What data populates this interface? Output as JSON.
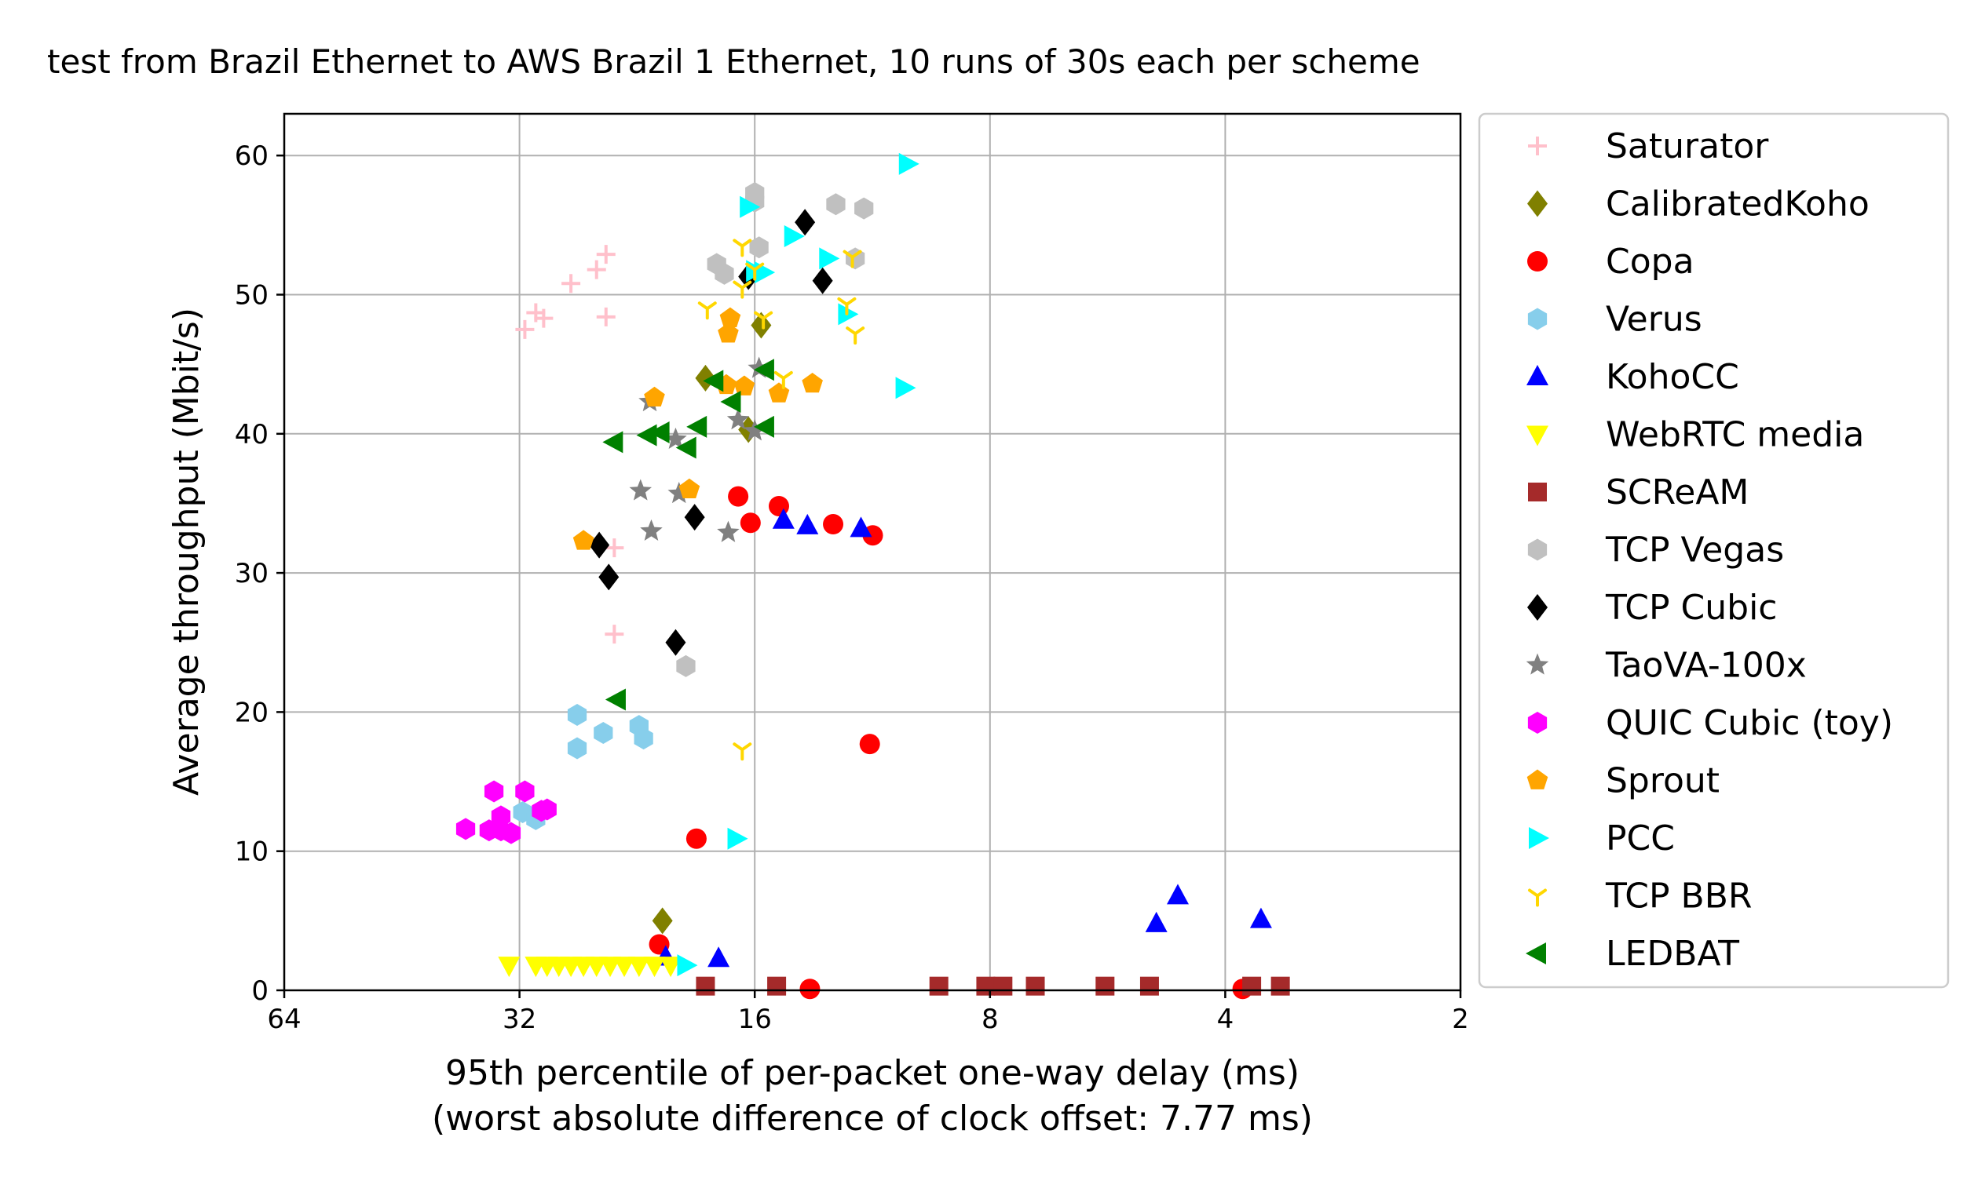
{
  "chart_data": {
    "type": "scatter",
    "title": "test from Brazil Ethernet to AWS Brazil 1 Ethernet, 10 runs of 30s each per scheme",
    "xlabel": "95th percentile of per-packet one-way delay (ms)",
    "xlabel2": "(worst absolute difference of clock offset: 7.77 ms)",
    "ylabel": "Average throughput (Mbit/s)",
    "x_scale": "log2",
    "x_inverted": true,
    "xlim": [
      64,
      2
    ],
    "ylim": [
      0,
      63
    ],
    "xticks": [
      64,
      32,
      16,
      8,
      4,
      2
    ],
    "xtick_labels": [
      "64",
      "32",
      "16",
      "8",
      "4",
      "2"
    ],
    "yticks": [
      0,
      10,
      20,
      30,
      40,
      50,
      60
    ],
    "ytick_labels": [
      "0",
      "10",
      "20",
      "30",
      "40",
      "50",
      "60"
    ],
    "grid": true,
    "legend_position": "outside-right",
    "series": [
      {
        "name": "Saturator",
        "marker": "plus",
        "color": "#ffc0cb",
        "points": [
          [
            31.5,
            47.5
          ],
          [
            30.5,
            48.7
          ],
          [
            29.8,
            48.3
          ],
          [
            27.5,
            50.8
          ],
          [
            25.5,
            51.8
          ],
          [
            24.8,
            52.9
          ],
          [
            24.8,
            48.4
          ],
          [
            24.2,
            31.8
          ],
          [
            24.2,
            25.6
          ]
        ]
      },
      {
        "name": "CalibratedKoho",
        "marker": "diamond",
        "color": "#808000",
        "points": [
          [
            18.5,
            44.0
          ],
          [
            16.3,
            40.3
          ],
          [
            15.7,
            47.8
          ],
          [
            21.0,
            5.0
          ]
        ]
      },
      {
        "name": "Copa",
        "marker": "circle",
        "color": "#ff0000",
        "points": [
          [
            16.8,
            35.5
          ],
          [
            16.2,
            33.6
          ],
          [
            14.9,
            34.8
          ],
          [
            12.7,
            33.5
          ],
          [
            11.3,
            32.7
          ],
          [
            11.4,
            17.7
          ],
          [
            19.0,
            10.9
          ],
          [
            21.2,
            3.3
          ],
          [
            13.6,
            0.1
          ],
          [
            3.8,
            0.1
          ]
        ]
      },
      {
        "name": "Verus",
        "marker": "hexagon",
        "color": "#87ceeb",
        "points": [
          [
            27.0,
            19.8
          ],
          [
            27.0,
            17.4
          ],
          [
            25.0,
            18.5
          ],
          [
            22.5,
            19.0
          ],
          [
            22.2,
            18.1
          ],
          [
            31.7,
            12.8
          ],
          [
            30.5,
            12.3
          ]
        ]
      },
      {
        "name": "KohoCC",
        "marker": "triangle-up",
        "color": "#0000ff",
        "points": [
          [
            14.7,
            33.8
          ],
          [
            13.7,
            33.4
          ],
          [
            11.7,
            33.2
          ],
          [
            20.8,
            2.4
          ],
          [
            17.8,
            2.3
          ],
          [
            4.9,
            4.8
          ],
          [
            4.6,
            6.8
          ],
          [
            3.6,
            5.1
          ]
        ]
      },
      {
        "name": "WebRTC media",
        "marker": "triangle-down",
        "color": "#ffff00",
        "points": [
          [
            33.0,
            1.8
          ],
          [
            30.5,
            1.8
          ],
          [
            29.5,
            1.8
          ],
          [
            28.5,
            1.8
          ],
          [
            27.5,
            1.8
          ],
          [
            26.5,
            1.8
          ],
          [
            25.5,
            1.8
          ],
          [
            24.5,
            1.8
          ],
          [
            23.5,
            1.8
          ],
          [
            22.5,
            1.8
          ],
          [
            21.5,
            1.8
          ],
          [
            20.5,
            1.8
          ]
        ]
      },
      {
        "name": "SCReAM",
        "marker": "square",
        "color": "#a52a2a",
        "points": [
          [
            18.5,
            0.3
          ],
          [
            15.0,
            0.3
          ],
          [
            9.3,
            0.3
          ],
          [
            8.1,
            0.3
          ],
          [
            7.7,
            0.3
          ],
          [
            7.0,
            0.3
          ],
          [
            5.7,
            0.3
          ],
          [
            5.0,
            0.3
          ],
          [
            3.7,
            0.3
          ],
          [
            3.4,
            0.3
          ]
        ]
      },
      {
        "name": "TCP Vegas",
        "marker": "hexagon",
        "color": "#c0c0c0",
        "points": [
          [
            16.0,
            57.3
          ],
          [
            16.0,
            56.7
          ],
          [
            15.8,
            53.4
          ],
          [
            17.9,
            52.2
          ],
          [
            17.5,
            51.5
          ],
          [
            12.6,
            56.5
          ],
          [
            11.6,
            56.2
          ],
          [
            11.9,
            52.6
          ],
          [
            19.6,
            23.3
          ]
        ]
      },
      {
        "name": "TCP Cubic",
        "marker": "diamond",
        "color": "#000000",
        "points": [
          [
            13.8,
            55.2
          ],
          [
            13.1,
            51.0
          ],
          [
            16.3,
            51.3
          ],
          [
            19.1,
            34.0
          ],
          [
            25.3,
            32.0
          ],
          [
            24.6,
            29.7
          ],
          [
            20.2,
            25.0
          ]
        ]
      },
      {
        "name": "TaoVA-100x",
        "marker": "star",
        "color": "#808080",
        "points": [
          [
            21.8,
            42.3
          ],
          [
            20.2,
            39.6
          ],
          [
            20.0,
            35.7
          ],
          [
            22.4,
            35.9
          ],
          [
            21.7,
            33.0
          ],
          [
            17.3,
            32.9
          ],
          [
            16.8,
            41.0
          ],
          [
            16.0,
            40.2
          ],
          [
            15.8,
            44.7
          ]
        ]
      },
      {
        "name": "QUIC Cubic (toy)",
        "marker": "hexagon",
        "color": "#ff00ff",
        "points": [
          [
            37.5,
            11.6
          ],
          [
            35.0,
            11.5
          ],
          [
            33.8,
            11.5
          ],
          [
            33.8,
            12.5
          ],
          [
            32.8,
            11.3
          ],
          [
            34.5,
            14.3
          ],
          [
            31.5,
            14.3
          ],
          [
            30.0,
            12.9
          ],
          [
            29.5,
            13.0
          ]
        ]
      },
      {
        "name": "Sprout",
        "marker": "pentagon",
        "color": "#ffa500",
        "points": [
          [
            17.2,
            48.3
          ],
          [
            17.3,
            47.2
          ],
          [
            21.5,
            42.6
          ],
          [
            17.4,
            43.5
          ],
          [
            16.5,
            43.4
          ],
          [
            14.9,
            42.9
          ],
          [
            13.5,
            43.6
          ],
          [
            19.4,
            36.0
          ],
          [
            26.5,
            32.3
          ]
        ]
      },
      {
        "name": "PCC",
        "marker": "triangle-right",
        "color": "#00ffff",
        "points": [
          [
            16.3,
            56.3
          ],
          [
            10.2,
            59.4
          ],
          [
            14.3,
            54.2
          ],
          [
            12.9,
            52.6
          ],
          [
            15.6,
            51.6
          ],
          [
            16.0,
            51.7
          ],
          [
            12.2,
            48.6
          ],
          [
            10.3,
            43.3
          ],
          [
            16.9,
            10.9
          ],
          [
            19.6,
            1.8
          ]
        ]
      },
      {
        "name": "TCP BBR",
        "marker": "tri-down",
        "color": "#ffd700",
        "points": [
          [
            16.6,
            53.5
          ],
          [
            16.0,
            51.8
          ],
          [
            12.0,
            52.7
          ],
          [
            18.4,
            49.0
          ],
          [
            16.6,
            50.5
          ],
          [
            15.6,
            48.3
          ],
          [
            12.2,
            49.3
          ],
          [
            11.9,
            47.2
          ],
          [
            14.7,
            44.0
          ],
          [
            16.6,
            17.3
          ]
        ]
      },
      {
        "name": "LEDBAT",
        "marker": "triangle-left",
        "color": "#008000",
        "points": [
          [
            18.0,
            43.8
          ],
          [
            15.5,
            44.6
          ],
          [
            17.1,
            42.3
          ],
          [
            15.5,
            40.5
          ],
          [
            18.9,
            40.5
          ],
          [
            21.1,
            40.1
          ],
          [
            21.9,
            39.9
          ],
          [
            19.5,
            39.0
          ],
          [
            24.2,
            39.4
          ],
          [
            24.0,
            20.9
          ]
        ]
      }
    ]
  }
}
